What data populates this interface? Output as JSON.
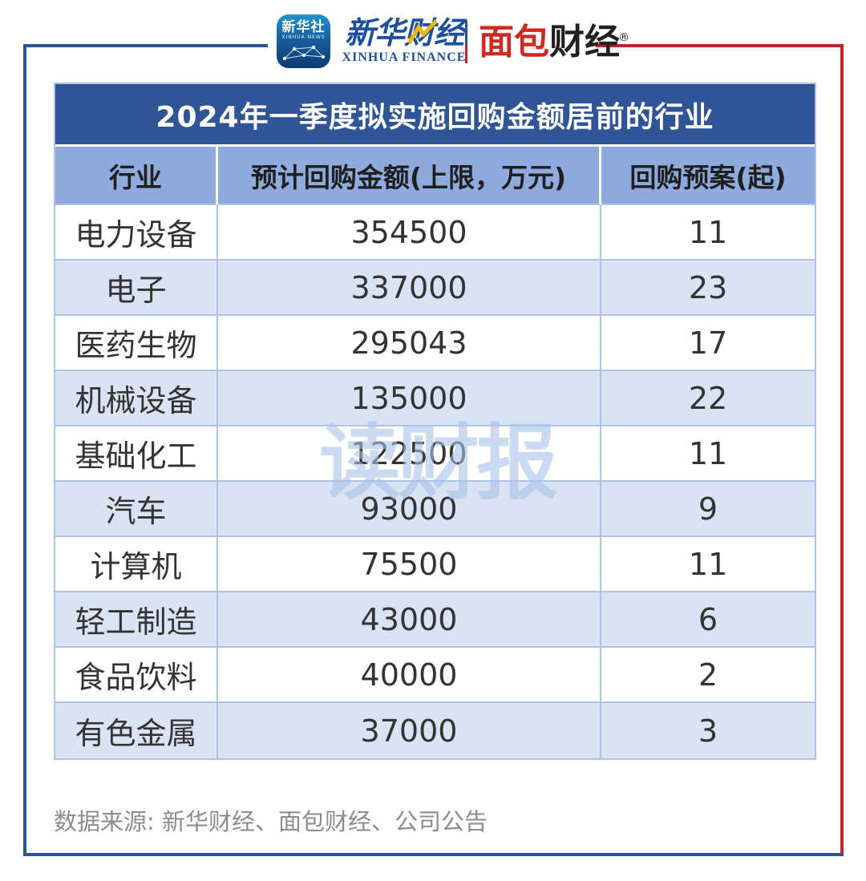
{
  "header": {
    "xinhua_icon": {
      "cn": "新华社",
      "en": "XINHUA NEWS"
    },
    "xinhua_finance": {
      "cn": "新华财经",
      "en": "XINHUA FINANCE"
    },
    "bread_finance": {
      "red": "面包",
      "black": "财经",
      "reg": "®"
    }
  },
  "chart_data": {
    "type": "table",
    "title": "2024年一季度拟实施回购金额居前的行业",
    "columns": [
      "行业",
      "预计回购金额(上限，万元)",
      "回购预案(起)"
    ],
    "rows": [
      [
        "电力设备",
        "354500",
        "11"
      ],
      [
        "电子",
        "337000",
        "23"
      ],
      [
        "医药生物",
        "295043",
        "17"
      ],
      [
        "机械设备",
        "135000",
        "22"
      ],
      [
        "基础化工",
        "122500",
        "11"
      ],
      [
        "汽车",
        "93000",
        "9"
      ],
      [
        "计算机",
        "75500",
        "11"
      ],
      [
        "轻工制造",
        "43000",
        "6"
      ],
      [
        "食品饮料",
        "40000",
        "2"
      ],
      [
        "有色金属",
        "37000",
        "3"
      ]
    ]
  },
  "watermark": "读财报",
  "source": "数据来源: 新华财经、面包财经、公司公告",
  "colors": {
    "frame_blue": "#2A5596",
    "frame_red": "#C0212A",
    "title_bg": "#2F5597",
    "title_text": "#FFFFFF",
    "header_bg": "#8FAADC",
    "header_text": "#1F1F1F",
    "row_alt_bg": "#DAE3F3",
    "grid_line": "#AFC3E6",
    "cell_text": "#333333",
    "source_text": "#8C8C8C",
    "watermark": "rgba(166,194,232,0.60)",
    "brand_blue": "#1D4F9C",
    "brand_red": "#CE2A21",
    "brand_black": "#231F20",
    "icon_top": "#2293CF",
    "icon_bottom": "#0E3A72",
    "accent_yellow": "#F2B705"
  }
}
